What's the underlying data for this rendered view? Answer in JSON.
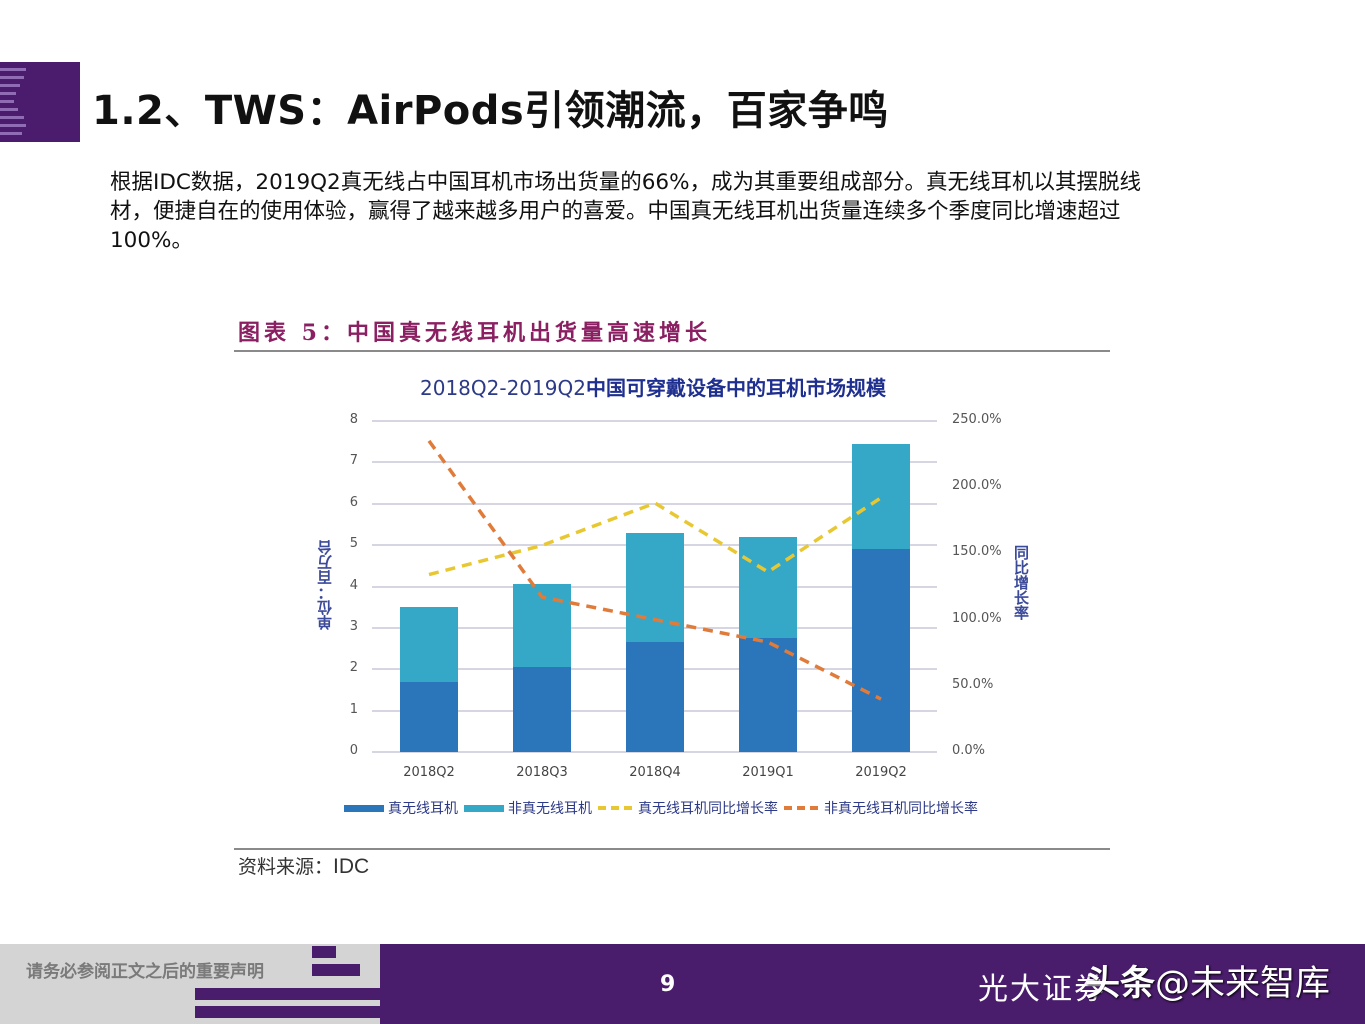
{
  "slide": {
    "title": "1.2、TWS：AirPods引领潮流，百家争鸣",
    "body": "根据IDC数据，2019Q2真无线占中国耳机市场出货量的66%，成为其重要组成部分。真无线耳机以其摆脱线材，便捷自在的使用体验，赢得了越来越多用户的喜爱。中国真无线耳机出货量连续多个季度同比增速超过100%。"
  },
  "figure": {
    "label": "图表 5：中国真无线耳机出货量高速增长",
    "source_label": "资料来源：",
    "source_value": "IDC"
  },
  "chart_data": {
    "type": "bar",
    "subtype": "stacked bar + dual-axis line",
    "title": "2018Q2-2019Q2中国可穿戴设备中的耳机市场规模",
    "title_prefix": "2018Q2-2019Q2",
    "title_suffix": "中国可穿戴设备中的耳机市场规模",
    "categories": [
      "2018Q2",
      "2018Q3",
      "2018Q4",
      "2019Q1",
      "2019Q2"
    ],
    "ylabel": "单位：百万台",
    "ylabel_right": "同比增长率",
    "ylim": [
      0,
      8
    ],
    "yticks": [
      "0",
      "1",
      "2",
      "3",
      "4",
      "5",
      "6",
      "7",
      "8"
    ],
    "ylim_right": [
      0,
      250
    ],
    "yticks_right": [
      "0.0%",
      "50.0%",
      "100.0%",
      "150.0%",
      "200.0%",
      "250.0%"
    ],
    "grid": true,
    "legend_position": "bottom",
    "series": [
      {
        "name": "真无线耳机",
        "type": "bar",
        "axis": "left",
        "color": "#2b75bb",
        "values": [
          1.7,
          2.05,
          2.65,
          2.75,
          4.9
        ]
      },
      {
        "name": "非真无线耳机",
        "type": "bar",
        "axis": "left",
        "color": "#35a8c8",
        "values": [
          1.8,
          2.0,
          2.65,
          2.45,
          2.55
        ]
      },
      {
        "name": "真无线耳机同比增长率",
        "type": "line",
        "style": "dashed",
        "axis": "right",
        "unit": "%",
        "color": "#e8c832",
        "values": [
          134,
          156,
          188,
          136,
          192
        ]
      },
      {
        "name": "非真无线耳机同比增长率",
        "type": "line",
        "style": "dashed",
        "axis": "right",
        "unit": "%",
        "color": "#e07b39",
        "values": [
          235,
          117,
          100,
          83,
          40
        ]
      }
    ]
  },
  "footer": {
    "disclaimer": "请务必参阅正文之后的重要声明",
    "page_number": "9",
    "brand": "光大证券",
    "watermark_bold": "头条",
    "watermark_rest": "@未来智库"
  },
  "colors": {
    "brand_purple": "#4a1c6c",
    "figure_title": "#8a1f62",
    "chart_title": "#2d3a87"
  }
}
